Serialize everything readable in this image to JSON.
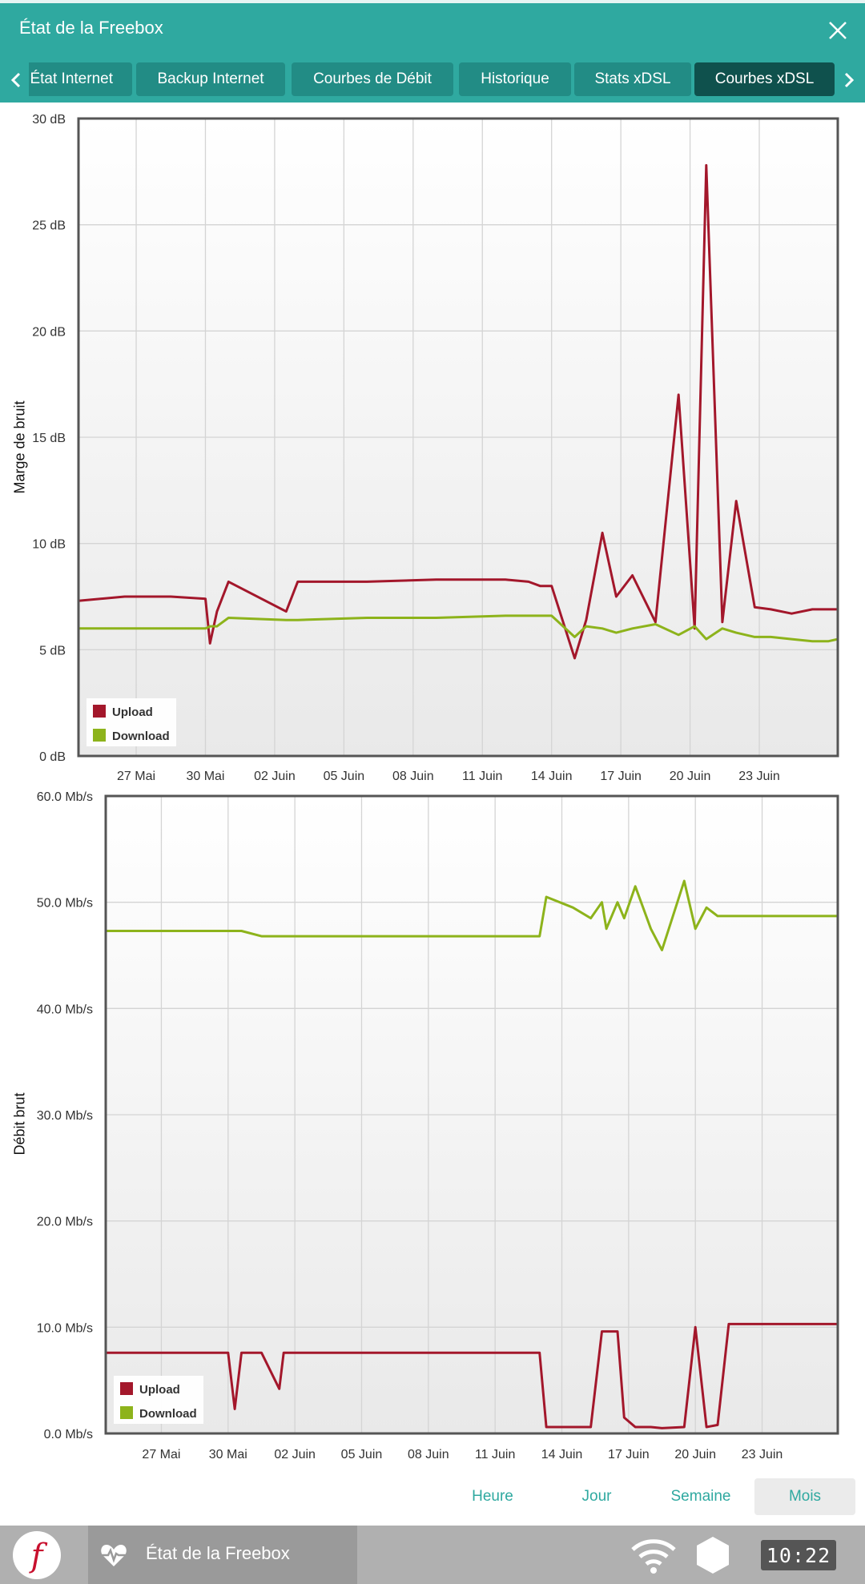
{
  "window": {
    "title": "État de la Freebox"
  },
  "tabs": [
    {
      "label": "État Internet",
      "active": false
    },
    {
      "label": "Backup Internet",
      "active": false
    },
    {
      "label": "Courbes de Débit",
      "active": false
    },
    {
      "label": "Historique",
      "active": false
    },
    {
      "label": "Stats xDSL",
      "active": false
    },
    {
      "label": "Courbes xDSL",
      "active": true
    }
  ],
  "x_ticks": [
    "27 Mai",
    "30 Mai",
    "02 Juin",
    "05 Juin",
    "08 Juin",
    "11 Juin",
    "14 Juin",
    "17 Juin",
    "20 Juin",
    "23 Juin"
  ],
  "legend": {
    "upload": "Upload",
    "download": "Download"
  },
  "colors": {
    "upload": "#a3172b",
    "download": "#8db31b",
    "accent": "#2fa9a0"
  },
  "chart_data": [
    {
      "type": "line",
      "ylabel": "Marge de bruit",
      "xlabel": "",
      "ylim": [
        0,
        30
      ],
      "y_ticks": [
        "0 dB",
        "5 dB",
        "10 dB",
        "15 dB",
        "20 dB",
        "25 dB",
        "30 dB"
      ],
      "x": [
        24.5,
        26.5,
        28.5,
        30.0,
        30.2,
        30.5,
        31.0,
        33.5,
        34.0,
        37.0,
        40.0,
        43.0,
        44.0,
        44.5,
        45.0,
        46.0,
        46.5,
        47.2,
        47.8,
        48.5,
        49.5,
        50.5,
        51.2,
        51.7,
        52.4,
        53.0,
        53.8,
        54.5,
        55.4,
        56.3,
        57.0,
        57.4
      ],
      "series": [
        {
          "name": "Upload",
          "values": [
            7.3,
            7.5,
            7.5,
            7.4,
            5.3,
            6.8,
            8.2,
            6.8,
            8.2,
            8.2,
            8.3,
            8.3,
            8.2,
            8.0,
            8.0,
            4.6,
            6.4,
            10.5,
            7.5,
            8.5,
            6.3,
            17.0,
            6.0,
            27.8,
            6.3,
            12.0,
            7.0,
            6.9,
            6.7,
            6.9,
            6.9,
            6.9
          ]
        },
        {
          "name": "Download",
          "values": [
            6.0,
            6.0,
            6.0,
            6.0,
            6.1,
            6.1,
            6.5,
            6.4,
            6.4,
            6.5,
            6.5,
            6.6,
            6.6,
            6.6,
            6.6,
            5.6,
            6.1,
            6.0,
            5.8,
            6.0,
            6.2,
            5.7,
            6.1,
            5.5,
            6.0,
            5.8,
            5.6,
            5.6,
            5.5,
            5.4,
            5.4,
            5.5
          ]
        }
      ]
    },
    {
      "type": "line",
      "ylabel": "Débit brut",
      "xlabel": "",
      "ylim": [
        0,
        60
      ],
      "y_ticks": [
        "0.0 Mb/s",
        "10.0 Mb/s",
        "20.0 Mb/s",
        "30.0 Mb/s",
        "40.0 Mb/s",
        "50.0 Mb/s",
        "60.0 Mb/s"
      ],
      "x": [
        24.5,
        28.5,
        30.0,
        30.3,
        30.6,
        31.5,
        32.3,
        32.5,
        39.0,
        43.0,
        44.0,
        44.3,
        45.5,
        46.3,
        46.8,
        47.0,
        47.5,
        47.8,
        48.3,
        49.0,
        49.5,
        50.5,
        51.0,
        51.5,
        52.0,
        52.5,
        53.0,
        54.0,
        57.4
      ],
      "series": [
        {
          "name": "Upload",
          "values": [
            7.6,
            7.6,
            7.6,
            2.3,
            7.6,
            7.6,
            4.2,
            7.6,
            7.6,
            7.6,
            7.6,
            0.6,
            0.6,
            0.6,
            9.6,
            9.6,
            9.6,
            1.5,
            0.6,
            0.6,
            0.5,
            0.6,
            10.0,
            0.6,
            0.8,
            10.3,
            10.3,
            10.3,
            10.3
          ]
        },
        {
          "name": "Download",
          "values": [
            47.3,
            47.3,
            47.3,
            47.3,
            47.3,
            46.8,
            46.8,
            46.8,
            46.8,
            46.8,
            46.8,
            50.5,
            49.5,
            48.5,
            50.0,
            47.5,
            50.0,
            48.5,
            51.5,
            47.5,
            45.5,
            52.0,
            47.5,
            49.5,
            48.7,
            48.7,
            48.7,
            48.7,
            48.7
          ]
        }
      ]
    }
  ],
  "ranges": [
    {
      "label": "Heure",
      "active": false
    },
    {
      "label": "Jour",
      "active": false
    },
    {
      "label": "Semaine",
      "active": false
    },
    {
      "label": "Mois",
      "active": true
    }
  ],
  "taskbar": {
    "app_label": "État de la Freebox",
    "clock": "10:22",
    "logo_letter": "f"
  },
  "icons": [
    "close-icon",
    "chevron-left-icon",
    "chevron-right-icon",
    "heart-pulse-icon",
    "wifi-icon",
    "hexagon-icon",
    "freebox-logo-icon"
  ]
}
